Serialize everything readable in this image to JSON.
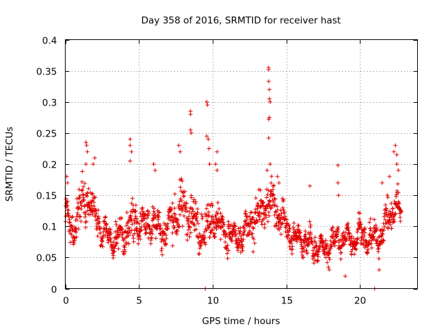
{
  "chart_data": {
    "type": "scatter",
    "title": "Day 358 of 2016, SRMTID for receiver hast",
    "xlabel": "GPS time / hours",
    "ylabel": "SRMTID / TECUs",
    "xlim": [
      0,
      23.9
    ],
    "ylim": [
      0,
      0.4
    ],
    "xticks": [
      0,
      5,
      10,
      15,
      20
    ],
    "xtick_labels": [
      "0",
      "5",
      "10",
      "15",
      "20"
    ],
    "yticks": [
      0,
      0.05,
      0.1,
      0.15,
      0.2,
      0.25,
      0.3,
      0.35,
      0.4
    ],
    "ytick_labels": [
      "0",
      "0.05",
      "0.1",
      "0.15",
      "0.2",
      "0.25",
      "0.3",
      "0.35",
      "0.4"
    ],
    "grid": true,
    "marker": "plus",
    "color": "#e00000",
    "series": [
      {
        "name": "SRMTID",
        "envelope": {
          "x": [
            0,
            0.5,
            1,
            1.5,
            2,
            2.5,
            3,
            3.5,
            4,
            4.5,
            5,
            5.5,
            6,
            6.5,
            7,
            7.5,
            8,
            8.5,
            9,
            9.5,
            10,
            10.5,
            11,
            11.5,
            12,
            12.5,
            13,
            13.5,
            14,
            14.5,
            15,
            15.5,
            16,
            16.5,
            17,
            17.5,
            18,
            18.5,
            19,
            19.5,
            20,
            20.5,
            21,
            21.5,
            22,
            22.5,
            22.8
          ],
          "center": [
            0.12,
            0.09,
            0.13,
            0.15,
            0.12,
            0.09,
            0.08,
            0.08,
            0.09,
            0.1,
            0.11,
            0.1,
            0.11,
            0.09,
            0.1,
            0.12,
            0.13,
            0.12,
            0.1,
            0.09,
            0.12,
            0.1,
            0.09,
            0.08,
            0.08,
            0.1,
            0.12,
            0.13,
            0.14,
            0.12,
            0.1,
            0.08,
            0.08,
            0.07,
            0.07,
            0.06,
            0.07,
            0.08,
            0.08,
            0.08,
            0.09,
            0.08,
            0.08,
            0.09,
            0.12,
            0.13,
            0.12
          ],
          "spread": [
            0.04,
            0.04,
            0.05,
            0.05,
            0.04,
            0.03,
            0.03,
            0.03,
            0.04,
            0.05,
            0.04,
            0.04,
            0.04,
            0.04,
            0.04,
            0.05,
            0.06,
            0.06,
            0.05,
            0.04,
            0.05,
            0.04,
            0.04,
            0.03,
            0.03,
            0.04,
            0.05,
            0.05,
            0.05,
            0.04,
            0.03,
            0.03,
            0.03,
            0.03,
            0.03,
            0.02,
            0.03,
            0.03,
            0.03,
            0.03,
            0.03,
            0.03,
            0.03,
            0.03,
            0.04,
            0.04,
            0.04
          ]
        },
        "sample_count": 1500,
        "spikes": [
          {
            "x": 0.1,
            "y": 0.18
          },
          {
            "x": 0.15,
            "y": 0.17
          },
          {
            "x": 1.4,
            "y": 0.235
          },
          {
            "x": 1.45,
            "y": 0.23
          },
          {
            "x": 1.5,
            "y": 0.22
          },
          {
            "x": 1.4,
            "y": 0.2
          },
          {
            "x": 2.0,
            "y": 0.21
          },
          {
            "x": 1.9,
            "y": 0.2
          },
          {
            "x": 4.4,
            "y": 0.24
          },
          {
            "x": 4.4,
            "y": 0.23
          },
          {
            "x": 4.5,
            "y": 0.22
          },
          {
            "x": 4.4,
            "y": 0.205
          },
          {
            "x": 6.0,
            "y": 0.2
          },
          {
            "x": 6.1,
            "y": 0.19
          },
          {
            "x": 7.7,
            "y": 0.23
          },
          {
            "x": 7.8,
            "y": 0.22
          },
          {
            "x": 8.5,
            "y": 0.285
          },
          {
            "x": 8.5,
            "y": 0.28
          },
          {
            "x": 8.5,
            "y": 0.255
          },
          {
            "x": 8.55,
            "y": 0.25
          },
          {
            "x": 9.5,
            "y": 0.0
          },
          {
            "x": 9.6,
            "y": 0.3
          },
          {
            "x": 9.65,
            "y": 0.295
          },
          {
            "x": 9.6,
            "y": 0.245
          },
          {
            "x": 9.7,
            "y": 0.24
          },
          {
            "x": 9.75,
            "y": 0.225
          },
          {
            "x": 9.8,
            "y": 0.2
          },
          {
            "x": 10.3,
            "y": 0.22
          },
          {
            "x": 10.2,
            "y": 0.2
          },
          {
            "x": 10.3,
            "y": 0.19
          },
          {
            "x": 13.8,
            "y": 0.355
          },
          {
            "x": 13.8,
            "y": 0.352
          },
          {
            "x": 13.8,
            "y": 0.333
          },
          {
            "x": 13.85,
            "y": 0.32
          },
          {
            "x": 13.85,
            "y": 0.305
          },
          {
            "x": 13.9,
            "y": 0.3
          },
          {
            "x": 13.85,
            "y": 0.275
          },
          {
            "x": 13.8,
            "y": 0.272
          },
          {
            "x": 13.8,
            "y": 0.242
          },
          {
            "x": 13.9,
            "y": 0.2
          },
          {
            "x": 13.7,
            "y": 0.19
          },
          {
            "x": 14.4,
            "y": 0.18
          },
          {
            "x": 14.5,
            "y": 0.17
          },
          {
            "x": 16.6,
            "y": 0.165
          },
          {
            "x": 18.5,
            "y": 0.198
          },
          {
            "x": 18.5,
            "y": 0.17
          },
          {
            "x": 18.55,
            "y": 0.15
          },
          {
            "x": 19.0,
            "y": 0.02
          },
          {
            "x": 21.0,
            "y": 0.0
          },
          {
            "x": 21.3,
            "y": 0.03
          },
          {
            "x": 21.5,
            "y": 0.17
          },
          {
            "x": 22.3,
            "y": 0.22
          },
          {
            "x": 22.4,
            "y": 0.23
          },
          {
            "x": 22.5,
            "y": 0.215
          },
          {
            "x": 22.5,
            "y": 0.2
          },
          {
            "x": 22.6,
            "y": 0.19
          },
          {
            "x": 22.0,
            "y": 0.18
          }
        ]
      }
    ]
  }
}
